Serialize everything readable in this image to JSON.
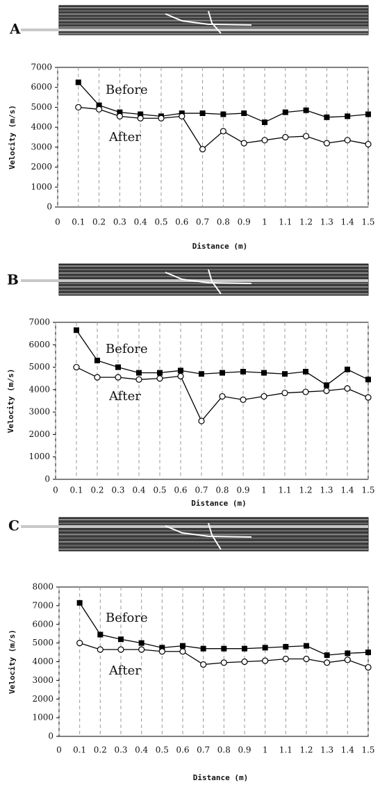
{
  "chart_data": [
    {
      "type": "line",
      "panel_label": "A",
      "x_label": "Distance (m)",
      "y_label": "Velocity (m/s)",
      "x": [
        0.1,
        0.2,
        0.3,
        0.4,
        0.5,
        0.6,
        0.7,
        0.8,
        0.9,
        1,
        1.1,
        1.2,
        1.3,
        1.4,
        1.5
      ],
      "series": [
        {
          "name": "Before",
          "color": "#000000",
          "marker": "square",
          "values": [
            6250,
            5100,
            4750,
            4650,
            4550,
            4700,
            4700,
            4650,
            4700,
            4250,
            4750,
            4850,
            4500,
            4550,
            4650
          ]
        },
        {
          "name": "After",
          "color": "#000000",
          "marker": "circle",
          "values": [
            5000,
            4900,
            4550,
            4450,
            4450,
            4550,
            2900,
            3800,
            3200,
            3350,
            3500,
            3550,
            3200,
            3350,
            3150
          ]
        }
      ],
      "xlim": [
        0,
        1.5
      ],
      "xticks": [
        0,
        0.1,
        0.2,
        0.3,
        0.4,
        0.5,
        0.6,
        0.7,
        0.8,
        0.9,
        1,
        1.1,
        1.2,
        1.3,
        1.4,
        1.5
      ],
      "ylim": [
        0,
        7000
      ],
      "yticks": [
        0,
        1000,
        2000,
        3000,
        4000,
        5000,
        6000,
        7000
      ],
      "grid": "x"
    },
    {
      "type": "line",
      "panel_label": "B",
      "x_label": "Distance (m)",
      "y_label": "Velocity (m/s)",
      "x": [
        0.1,
        0.2,
        0.3,
        0.4,
        0.5,
        0.6,
        0.7,
        0.8,
        0.9,
        1,
        1.1,
        1.2,
        1.3,
        1.4,
        1.5
      ],
      "series": [
        {
          "name": "Before",
          "color": "#000000",
          "marker": "square",
          "values": [
            6650,
            5300,
            5000,
            4750,
            4750,
            4850,
            4700,
            4750,
            4800,
            4750,
            4700,
            4800,
            4200,
            4900,
            4450
          ]
        },
        {
          "name": "After",
          "color": "#000000",
          "marker": "circle",
          "values": [
            5000,
            4550,
            4550,
            4450,
            4500,
            4600,
            2600,
            3700,
            3550,
            3700,
            3850,
            3900,
            3950,
            4050,
            3650
          ]
        }
      ],
      "xlim": [
        0,
        1.5
      ],
      "xticks": [
        0,
        0.1,
        0.2,
        0.3,
        0.4,
        0.5,
        0.6,
        0.7,
        0.8,
        0.9,
        1,
        1.1,
        1.2,
        1.3,
        1.4,
        1.5
      ],
      "ylim": [
        0,
        7000
      ],
      "yticks": [
        0,
        1000,
        2000,
        3000,
        4000,
        5000,
        6000,
        7000
      ],
      "grid": "x"
    },
    {
      "type": "line",
      "panel_label": "C",
      "x_label": "Distance (m)",
      "y_label": "Velocity (m/s)",
      "x": [
        0.1,
        0.2,
        0.3,
        0.4,
        0.5,
        0.6,
        0.7,
        0.8,
        0.9,
        1,
        1.1,
        1.2,
        1.3,
        1.4,
        1.5
      ],
      "series": [
        {
          "name": "Before",
          "color": "#000000",
          "marker": "square",
          "values": [
            7150,
            5450,
            5200,
            5000,
            4750,
            4850,
            4700,
            4700,
            4700,
            4750,
            4800,
            4850,
            4350,
            4450,
            4500
          ]
        },
        {
          "name": "After",
          "color": "#000000",
          "marker": "circle",
          "values": [
            5000,
            4650,
            4650,
            4650,
            4550,
            4550,
            3850,
            3950,
            4000,
            4050,
            4150,
            4150,
            3950,
            4100,
            3700
          ]
        }
      ],
      "xlim": [
        0,
        1.5
      ],
      "xticks": [
        0,
        0.1,
        0.2,
        0.3,
        0.4,
        0.5,
        0.6,
        0.7,
        0.8,
        0.9,
        1,
        1.1,
        1.2,
        1.3,
        1.4,
        1.5
      ],
      "ylim": [
        0,
        8000
      ],
      "yticks": [
        0,
        1000,
        2000,
        3000,
        4000,
        5000,
        6000,
        7000,
        8000
      ],
      "grid": "x"
    }
  ]
}
